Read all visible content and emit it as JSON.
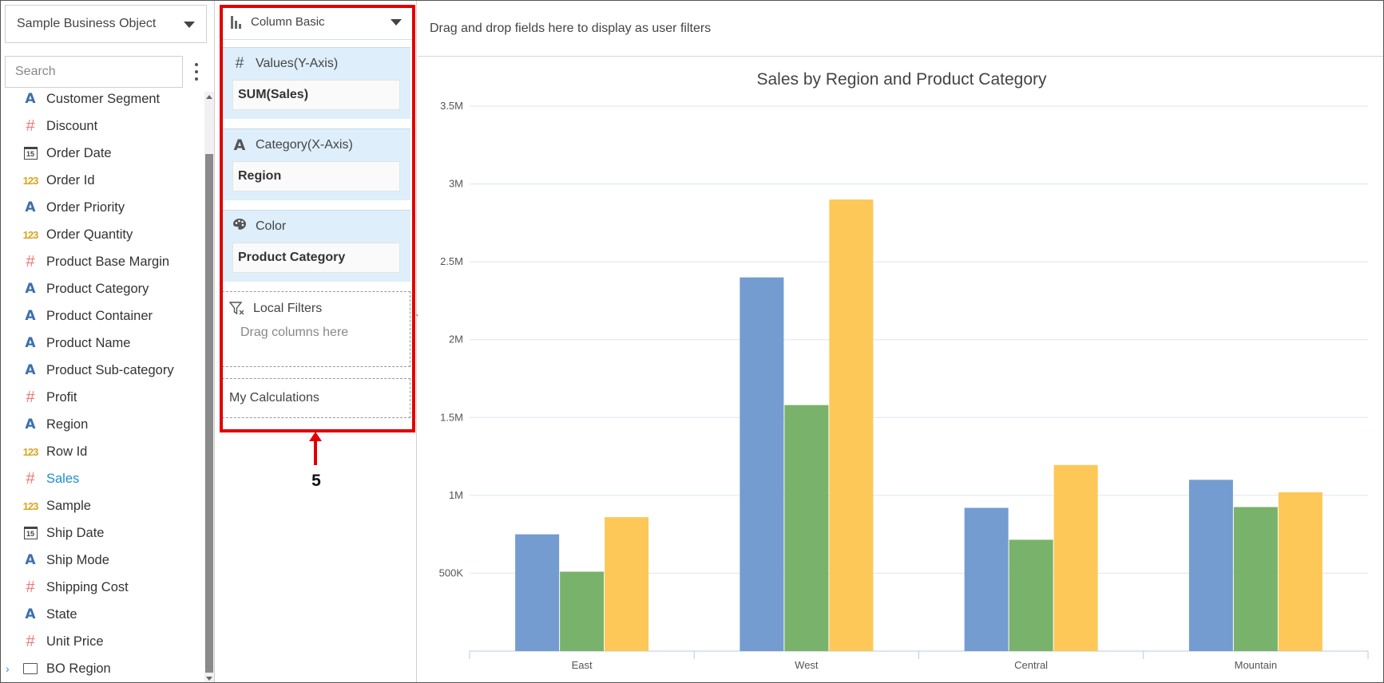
{
  "field_panel": {
    "business_object": "Sample Business Object",
    "search_placeholder": "Search",
    "fields": [
      {
        "label": "Customer Segment",
        "icon": "text-field-icon",
        "type": "text"
      },
      {
        "label": "Discount",
        "icon": "numeric-field-icon",
        "type": "hash"
      },
      {
        "label": "Order Date",
        "icon": "calendar-icon",
        "type": "date"
      },
      {
        "label": "Order Id",
        "icon": "integer-field-icon",
        "type": "int"
      },
      {
        "label": "Order Priority",
        "icon": "text-field-icon",
        "type": "text"
      },
      {
        "label": "Order Quantity",
        "icon": "integer-field-icon",
        "type": "int"
      },
      {
        "label": "Product Base Margin",
        "icon": "numeric-field-icon",
        "type": "hash"
      },
      {
        "label": "Product Category",
        "icon": "text-field-icon",
        "type": "text"
      },
      {
        "label": "Product Container",
        "icon": "text-field-icon",
        "type": "text"
      },
      {
        "label": "Product Name",
        "icon": "text-field-icon",
        "type": "text"
      },
      {
        "label": "Product Sub-category",
        "icon": "text-field-icon",
        "type": "text"
      },
      {
        "label": "Profit",
        "icon": "numeric-field-icon",
        "type": "hash"
      },
      {
        "label": "Region",
        "icon": "text-field-icon",
        "type": "text"
      },
      {
        "label": "Row Id",
        "icon": "integer-field-icon",
        "type": "int"
      },
      {
        "label": "Sales",
        "icon": "numeric-field-icon",
        "type": "hash",
        "active": true
      },
      {
        "label": "Sample",
        "icon": "integer-field-icon",
        "type": "int"
      },
      {
        "label": "Ship Date",
        "icon": "calendar-icon",
        "type": "date"
      },
      {
        "label": "Ship Mode",
        "icon": "text-field-icon",
        "type": "text"
      },
      {
        "label": "Shipping Cost",
        "icon": "numeric-field-icon",
        "type": "hash"
      },
      {
        "label": "State",
        "icon": "text-field-icon",
        "type": "text"
      },
      {
        "label": "Unit Price",
        "icon": "numeric-field-icon",
        "type": "hash"
      },
      {
        "label": "BO Region",
        "icon": "folder-icon",
        "type": "folder"
      }
    ]
  },
  "config_panel": {
    "chart_type": "Column Basic",
    "values_zone": {
      "title": "Values(Y-Axis)",
      "field": "SUM(Sales)"
    },
    "category_zone": {
      "title": "Category(X-Axis)",
      "field": "Region"
    },
    "color_zone": {
      "title": "Color",
      "field": "Product Category"
    },
    "local_filters": {
      "title": "Local Filters",
      "hint": "Drag columns here"
    },
    "calculations": {
      "title": "My Calculations"
    }
  },
  "annotation": {
    "step_number": "5",
    "color": "#e00000"
  },
  "chart_area": {
    "user_filters_hint": "Drag and drop fields here to display as user filters"
  },
  "chart_data": {
    "type": "bar",
    "title": "Sales by Region and Product Category",
    "xlabel": "",
    "ylabel": "",
    "categories": [
      "East",
      "West",
      "Central",
      "Mountain"
    ],
    "series": [
      {
        "values": [
          750000,
          2400000,
          920000,
          1100000
        ],
        "color": "#749cd0"
      },
      {
        "values": [
          510000,
          1580000,
          715000,
          925000
        ],
        "color": "#79b26a"
      },
      {
        "values": [
          860000,
          2900000,
          1195000,
          1020000
        ],
        "color": "#fdc857"
      }
    ],
    "ylim": [
      0,
      3500000
    ],
    "yticks": [
      {
        "value": 500000,
        "label": "500K"
      },
      {
        "value": 1000000,
        "label": "1M"
      },
      {
        "value": 1500000,
        "label": "1.5M"
      },
      {
        "value": 2000000,
        "label": "2M"
      },
      {
        "value": 2500000,
        "label": "2.5M"
      },
      {
        "value": 3000000,
        "label": "3M"
      },
      {
        "value": 3500000,
        "label": "3.5M"
      }
    ],
    "grid": true,
    "legend": "none"
  }
}
